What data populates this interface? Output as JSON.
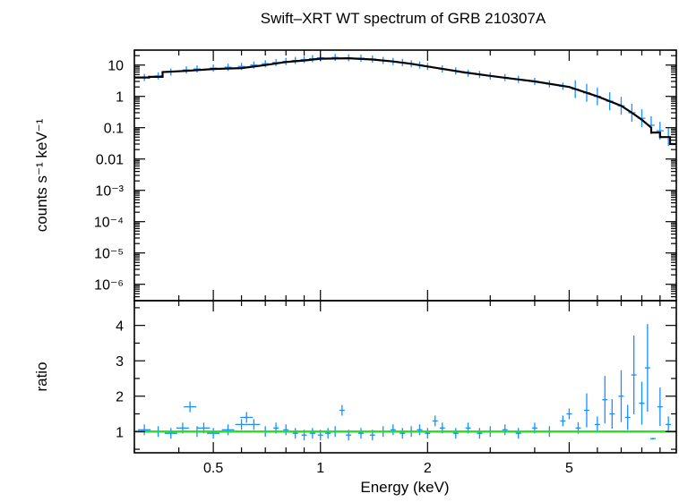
{
  "chart_data": {
    "type": "scatter",
    "title": "Swift–XRT WT spectrum of GRB 210307A",
    "xlabel": "Energy (keV)",
    "xscale": "log",
    "xlim": [
      0.3,
      10
    ],
    "x_ticks": [
      {
        "value": 0.5,
        "label": "0.5"
      },
      {
        "value": 1,
        "label": "1"
      },
      {
        "value": 2,
        "label": "2"
      },
      {
        "value": 5,
        "label": "5"
      }
    ],
    "colors": {
      "data": "#1a8fff",
      "model": "#000000",
      "unity": "#22dd22"
    },
    "panels": [
      {
        "name": "spectrum",
        "ylabel": "counts s⁻¹ keV⁻¹",
        "yscale": "log",
        "ylim": [
          3e-07,
          30
        ],
        "y_ticks": [
          {
            "value": 10,
            "label": "10"
          },
          {
            "value": 1,
            "label": "1"
          },
          {
            "value": 0.1,
            "label": "0.1"
          },
          {
            "value": 0.01,
            "label": "0.01"
          },
          {
            "value": 0.001,
            "label": "10⁻³"
          },
          {
            "value": 0.0001,
            "label": "10⁻⁴"
          },
          {
            "value": 1e-05,
            "label": "10⁻⁵"
          },
          {
            "value": 1e-06,
            "label": "10⁻⁶"
          }
        ],
        "data_points": [
          [
            0.32,
            4.0
          ],
          [
            0.35,
            4.5
          ],
          [
            0.38,
            6.0
          ],
          [
            0.42,
            7.0
          ],
          [
            0.45,
            7.5
          ],
          [
            0.5,
            8.0
          ],
          [
            0.55,
            8.5
          ],
          [
            0.6,
            9.0
          ],
          [
            0.65,
            10.0
          ],
          [
            0.7,
            11.0
          ],
          [
            0.75,
            12.0
          ],
          [
            0.8,
            13.0
          ],
          [
            0.85,
            14.0
          ],
          [
            0.9,
            15.0
          ],
          [
            0.95,
            16.0
          ],
          [
            1.0,
            17.0
          ],
          [
            1.1,
            17.5
          ],
          [
            1.2,
            17.0
          ],
          [
            1.3,
            16.5
          ],
          [
            1.4,
            15.5
          ],
          [
            1.5,
            14.0
          ],
          [
            1.6,
            13.0
          ],
          [
            1.7,
            12.0
          ],
          [
            1.8,
            11.0
          ],
          [
            1.9,
            10.0
          ],
          [
            2.0,
            9.0
          ],
          [
            2.2,
            7.5
          ],
          [
            2.4,
            6.5
          ],
          [
            2.6,
            5.5
          ],
          [
            2.8,
            5.0
          ],
          [
            3.0,
            4.5
          ],
          [
            3.3,
            4.0
          ],
          [
            3.6,
            3.5
          ],
          [
            4.0,
            3.0
          ],
          [
            4.4,
            2.5
          ],
          [
            4.8,
            2.1
          ],
          [
            5.2,
            1.7
          ],
          [
            5.6,
            1.3
          ],
          [
            6.0,
            1.0
          ],
          [
            6.5,
            0.7
          ],
          [
            7.0,
            0.5
          ],
          [
            7.5,
            0.3
          ],
          [
            8.0,
            0.2
          ],
          [
            8.5,
            0.12
          ],
          [
            9.0,
            0.08
          ],
          [
            9.5,
            0.05
          ]
        ],
        "model_steps": [
          [
            0.3,
            4.0
          ],
          [
            0.33,
            4.0
          ],
          [
            0.33,
            4.2
          ],
          [
            0.36,
            4.2
          ],
          [
            0.36,
            6.0
          ],
          [
            0.42,
            6.5
          ],
          [
            0.5,
            7.5
          ],
          [
            0.6,
            8.0
          ],
          [
            0.7,
            10.0
          ],
          [
            0.8,
            12.5
          ],
          [
            0.9,
            14.0
          ],
          [
            1.0,
            16.0
          ],
          [
            1.2,
            16.5
          ],
          [
            1.4,
            15.0
          ],
          [
            1.6,
            13.0
          ],
          [
            1.8,
            11.0
          ],
          [
            2.0,
            9.0
          ],
          [
            2.5,
            6.0
          ],
          [
            3.0,
            4.5
          ],
          [
            3.5,
            3.6
          ],
          [
            4.0,
            3.0
          ],
          [
            5.0,
            2.0
          ],
          [
            6.0,
            1.0
          ],
          [
            7.0,
            0.5
          ],
          [
            7.5,
            0.3
          ],
          [
            8.0,
            0.18
          ],
          [
            8.5,
            0.1
          ],
          [
            8.5,
            0.07
          ],
          [
            9.0,
            0.07
          ],
          [
            9.0,
            0.05
          ],
          [
            9.6,
            0.05
          ],
          [
            9.6,
            0.03
          ],
          [
            10.0,
            0.03
          ]
        ]
      },
      {
        "name": "ratio",
        "ylabel": "ratio",
        "yscale": "linear",
        "ylim": [
          0.4,
          4.7
        ],
        "y_ticks": [
          {
            "value": 1,
            "label": "1"
          },
          {
            "value": 2,
            "label": "2"
          },
          {
            "value": 3,
            "label": "3"
          },
          {
            "value": 4,
            "label": "4"
          }
        ],
        "unity_line": 1,
        "data_points": [
          [
            0.32,
            1.05
          ],
          [
            0.35,
            1.0
          ],
          [
            0.38,
            0.95
          ],
          [
            0.41,
            1.1
          ],
          [
            0.43,
            1.7
          ],
          [
            0.45,
            1.0
          ],
          [
            0.47,
            1.1
          ],
          [
            0.5,
            0.95
          ],
          [
            0.55,
            1.05
          ],
          [
            0.6,
            1.2
          ],
          [
            0.62,
            1.4
          ],
          [
            0.65,
            1.2
          ],
          [
            0.7,
            1.0
          ],
          [
            0.75,
            1.1
          ],
          [
            0.8,
            1.05
          ],
          [
            0.85,
            0.95
          ],
          [
            0.9,
            0.9
          ],
          [
            0.95,
            0.95
          ],
          [
            1.0,
            0.9
          ],
          [
            1.05,
            0.95
          ],
          [
            1.1,
            1.0
          ],
          [
            1.15,
            1.6
          ],
          [
            1.2,
            0.9
          ],
          [
            1.3,
            0.95
          ],
          [
            1.4,
            0.9
          ],
          [
            1.5,
            1.0
          ],
          [
            1.6,
            1.05
          ],
          [
            1.7,
            0.95
          ],
          [
            1.8,
            1.0
          ],
          [
            1.9,
            1.05
          ],
          [
            2.0,
            0.95
          ],
          [
            2.1,
            1.3
          ],
          [
            2.2,
            1.1
          ],
          [
            2.4,
            0.95
          ],
          [
            2.6,
            1.1
          ],
          [
            2.8,
            0.95
          ],
          [
            3.0,
            1.0
          ],
          [
            3.3,
            1.05
          ],
          [
            3.6,
            0.95
          ],
          [
            4.0,
            1.1
          ],
          [
            4.4,
            1.0
          ],
          [
            4.8,
            1.3
          ],
          [
            5.0,
            1.5
          ],
          [
            5.3,
            1.1
          ],
          [
            5.6,
            1.6
          ],
          [
            6.0,
            1.2
          ],
          [
            6.3,
            1.9
          ],
          [
            6.6,
            1.5
          ],
          [
            7.0,
            2.0
          ],
          [
            7.3,
            1.4
          ],
          [
            7.6,
            2.6
          ],
          [
            8.0,
            1.8
          ],
          [
            8.3,
            2.8
          ],
          [
            8.6,
            0.8
          ],
          [
            9.0,
            1.7
          ],
          [
            9.5,
            1.2
          ]
        ]
      }
    ]
  }
}
